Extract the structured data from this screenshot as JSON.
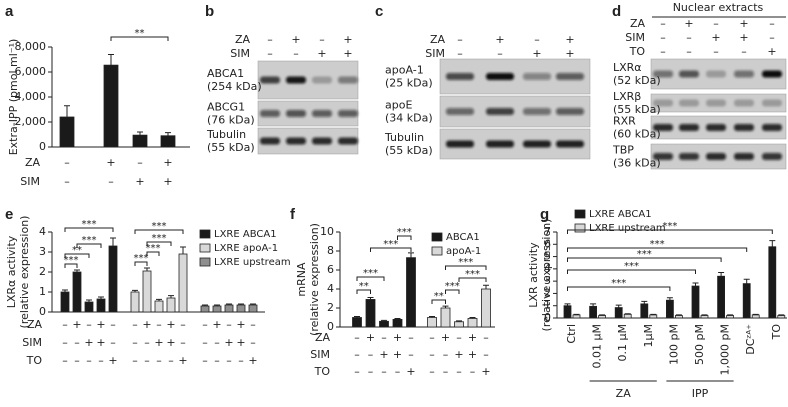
{
  "chart_data": [
    {
      "label": "a",
      "type": "bar",
      "ylabel": "Extra-IPP (pmol ml⁻¹)",
      "values": [
        2400,
        6550,
        950,
        900
      ],
      "errors": [
        900,
        850,
        250,
        250
      ],
      "color": "#1a1a1a",
      "ylim": [
        0,
        8000
      ],
      "yticks": [
        0,
        {
          "value": 2000,
          "label": "2,000"
        },
        {
          "value": 4000,
          "label": "4,000"
        },
        {
          "value": 6000,
          "label": "6,000"
        },
        {
          "value": 8000,
          "label": "8,000"
        }
      ],
      "conditions": [
        {
          "name": "ZA",
          "signs": [
            "–",
            "+",
            "–",
            "+"
          ]
        },
        {
          "name": "SIM",
          "signs": [
            "–",
            "–",
            "+",
            "+"
          ]
        }
      ],
      "annotations": [
        "**"
      ]
    },
    {
      "label": "e",
      "type": "bar",
      "ylabel": [
        "LXRα activity",
        "(relative expression)"
      ],
      "series": [
        {
          "name": "LXRE ABCA1",
          "color": "#1a1a1a",
          "values": [
            1.0,
            2.0,
            0.5,
            0.65,
            3.3
          ],
          "errors": [
            0.1,
            0.1,
            0.1,
            0.1,
            0.4
          ]
        },
        {
          "name": "LXRE apoA-1",
          "color": "#d9d9d9",
          "values": [
            1.0,
            2.05,
            0.55,
            0.7,
            2.9
          ],
          "errors": [
            0.08,
            0.15,
            0.08,
            0.12,
            0.35
          ]
        },
        {
          "name": "LXRE upstream",
          "color": "#8f8f8f",
          "values": [
            0.3,
            0.3,
            0.35,
            0.35,
            0.35
          ],
          "errors": [
            0.05,
            0.05,
            0.05,
            0.05,
            0.05
          ]
        }
      ],
      "ylim": [
        0,
        4
      ],
      "yticks": [
        0,
        1,
        2,
        3,
        4
      ],
      "conditions": [
        {
          "name": "ZA",
          "signs": [
            "–",
            "+",
            "–",
            "+",
            "–",
            "–",
            "+",
            "–",
            "+",
            "–",
            "–",
            "+",
            "–",
            "+",
            "–"
          ]
        },
        {
          "name": "SIM",
          "signs": [
            "–",
            "–",
            "+",
            "+",
            "–",
            "–",
            "–",
            "+",
            "+",
            "–",
            "–",
            "–",
            "+",
            "+",
            "–"
          ]
        },
        {
          "name": "TO",
          "signs": [
            "–",
            "–",
            "–",
            "–",
            "+",
            "–",
            "–",
            "–",
            "–",
            "+",
            "–",
            "–",
            "–",
            "–",
            "+"
          ]
        }
      ],
      "annotations": [
        "***",
        "**",
        "***",
        "***",
        "***",
        "***",
        "***",
        "***"
      ]
    },
    {
      "label": "f",
      "type": "bar",
      "ylabel": [
        "mRNA",
        "(relative expression)"
      ],
      "series": [
        {
          "name": "ABCA1",
          "color": "#1a1a1a",
          "values": [
            1.0,
            2.9,
            0.6,
            0.8,
            7.3
          ],
          "errors": [
            0.1,
            0.2,
            0.1,
            0.1,
            0.5
          ]
        },
        {
          "name": "apoA-1",
          "color": "#d9d9d9",
          "values": [
            1.0,
            2.0,
            0.55,
            0.9,
            4.0
          ],
          "errors": [
            0.1,
            0.2,
            0.1,
            0.1,
            0.4
          ]
        }
      ],
      "ylim": [
        0,
        10
      ],
      "yticks": [
        0,
        2,
        4,
        6,
        8,
        10
      ],
      "conditions": [
        {
          "name": "ZA",
          "signs": [
            "–",
            "+",
            "–",
            "+",
            "–",
            "–",
            "+",
            "–",
            "+",
            "–"
          ]
        },
        {
          "name": "SIM",
          "signs": [
            "–",
            "–",
            "+",
            "+",
            "–",
            "–",
            "–",
            "+",
            "+",
            "–"
          ]
        },
        {
          "name": "TO",
          "signs": [
            "–",
            "–",
            "–",
            "–",
            "+",
            "–",
            "–",
            "–",
            "–",
            "+"
          ]
        }
      ],
      "annotations": [
        "**",
        "***",
        "***",
        "***",
        "**",
        "***",
        "***",
        "***"
      ]
    },
    {
      "label": "g",
      "type": "bar",
      "ylabel": [
        "LXR activity",
        "(relative expression)"
      ],
      "categories": [
        "Ctrl",
        "0.01 µM",
        "0.1 µM",
        "1µM",
        "100 pM",
        "500 pM",
        "1,000 pM",
        "DCᶻᴬ⁺",
        "TO"
      ],
      "groups": [
        "ZA",
        "IPP"
      ],
      "series": [
        {
          "name": "LXRE ABCA1",
          "color": "#1a1a1a",
          "values": [
            1.0,
            0.95,
            0.85,
            1.15,
            1.45,
            2.6,
            3.4,
            2.8,
            5.8
          ],
          "errors": [
            0.15,
            0.2,
            0.2,
            0.2,
            0.2,
            0.25,
            0.3,
            0.35,
            0.5
          ]
        },
        {
          "name": "LXRE upstream",
          "color": "#d9d9d9",
          "values": [
            0.25,
            0.2,
            0.3,
            0.25,
            0.2,
            0.2,
            0.2,
            0.25,
            0.2
          ],
          "errors": [
            0.05,
            0.05,
            0.05,
            0.05,
            0.05,
            0.05,
            0.05,
            0.05,
            0.05
          ]
        }
      ],
      "ylim": [
        0,
        7
      ],
      "yticks": [
        0,
        1,
        2,
        3,
        4,
        5,
        6,
        7
      ],
      "annotations": [
        "***",
        "***",
        "***",
        "***",
        "***"
      ]
    }
  ],
  "blots": [
    {
      "label": "b",
      "conditions": [
        {
          "name": "ZA",
          "signs": [
            "–",
            "+",
            "–",
            "+"
          ]
        },
        {
          "name": "SIM",
          "signs": [
            "–",
            "–",
            "+",
            "+"
          ]
        }
      ],
      "bands": [
        {
          "name": "ABCA1",
          "size": "(254 kDa)"
        },
        {
          "name": "ABCG1",
          "size": "(76 kDa)"
        },
        {
          "name": "Tubulin",
          "size": "(55 kDa)"
        }
      ]
    },
    {
      "label": "c",
      "conditions": [
        {
          "name": "ZA",
          "signs": [
            "–",
            "+",
            "–",
            "+"
          ]
        },
        {
          "name": "SIM",
          "signs": [
            "–",
            "–",
            "+",
            "+"
          ]
        }
      ],
      "bands": [
        {
          "name": "apoA-1",
          "size": "(25 kDa)"
        },
        {
          "name": "apoE",
          "size": "(34 kDa)"
        },
        {
          "name": "Tubulin",
          "size": "(55 kDa)"
        }
      ]
    },
    {
      "label": "d",
      "title": "Nuclear extracts",
      "conditions": [
        {
          "name": "ZA",
          "signs": [
            "–",
            "+",
            "–",
            "+",
            "–"
          ]
        },
        {
          "name": "SIM",
          "signs": [
            "–",
            "–",
            "+",
            "+",
            "–"
          ]
        },
        {
          "name": "TO",
          "signs": [
            "–",
            "–",
            "–",
            "–",
            "+"
          ]
        }
      ],
      "bands": [
        {
          "name": "LXRα",
          "size": "(52 kDa)"
        },
        {
          "name": "LXRβ",
          "size": "(55 kDa)"
        },
        {
          "name": "RXR",
          "size": "(60 kDa)"
        },
        {
          "name": "TBP",
          "size": "(36 kDa)"
        }
      ]
    }
  ]
}
